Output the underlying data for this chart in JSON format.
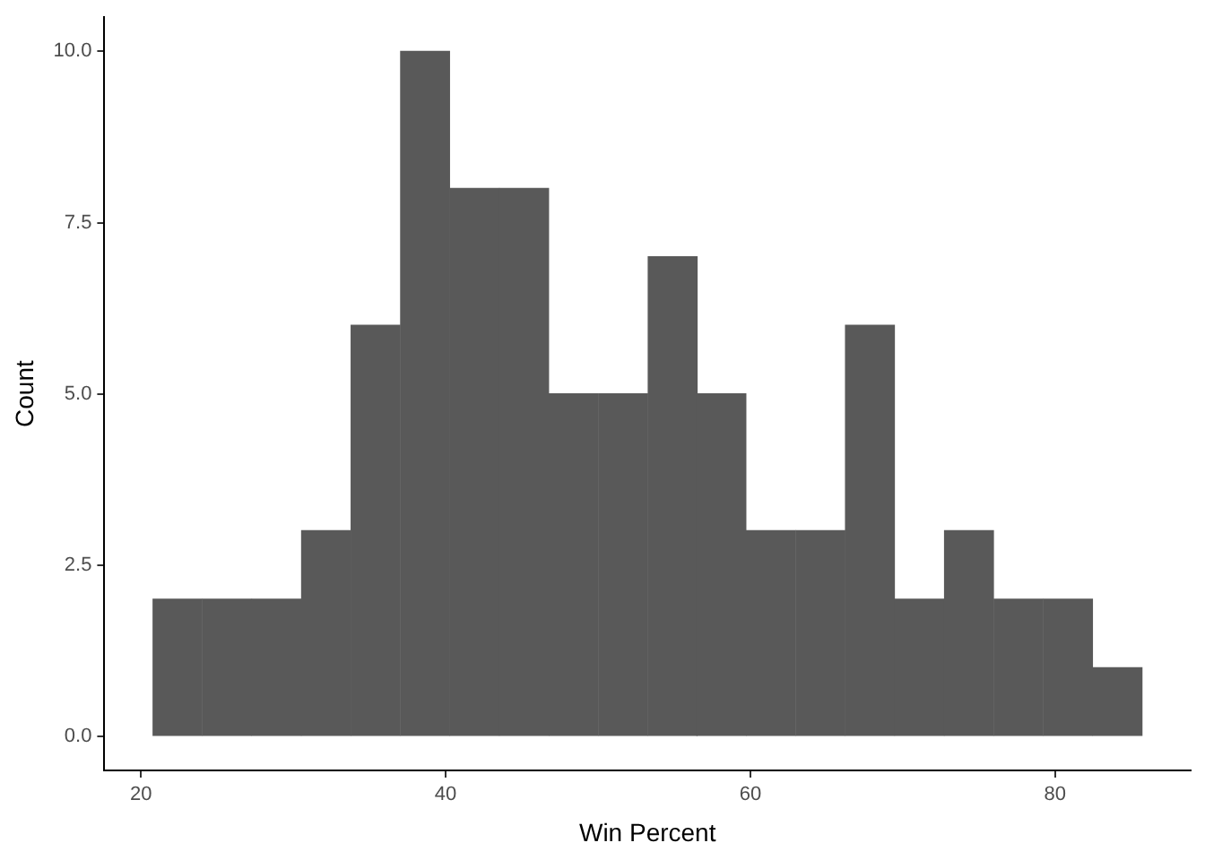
{
  "chart_data": {
    "type": "histogram",
    "xlabel": "Win Percent",
    "ylabel": "Count",
    "bins": [
      20.8,
      24.0,
      27.3,
      30.5,
      33.8,
      37.0,
      40.3,
      43.5,
      46.8,
      50.0,
      53.3,
      56.5,
      59.7,
      63.0,
      66.2,
      69.5,
      72.7,
      76.0,
      79.2,
      82.5,
      85.7
    ],
    "values": [
      2,
      2,
      2,
      3,
      6,
      10,
      8,
      8,
      5,
      5,
      7,
      5,
      3,
      3,
      6,
      2,
      3,
      2,
      2,
      1
    ],
    "color": "#595959",
    "xlim": [
      17.6,
      88.9
    ],
    "xticks": [
      20,
      40,
      60,
      80
    ],
    "ylim": [
      -0.5,
      10.5
    ],
    "yticks": [
      {
        "value": 0,
        "label": "0.0"
      },
      {
        "value": 2.5,
        "label": "2.5"
      },
      {
        "value": 5,
        "label": "5.0"
      },
      {
        "value": 7.5,
        "label": "7.5"
      },
      {
        "value": 10,
        "label": "10.0"
      }
    ],
    "grid": false
  }
}
